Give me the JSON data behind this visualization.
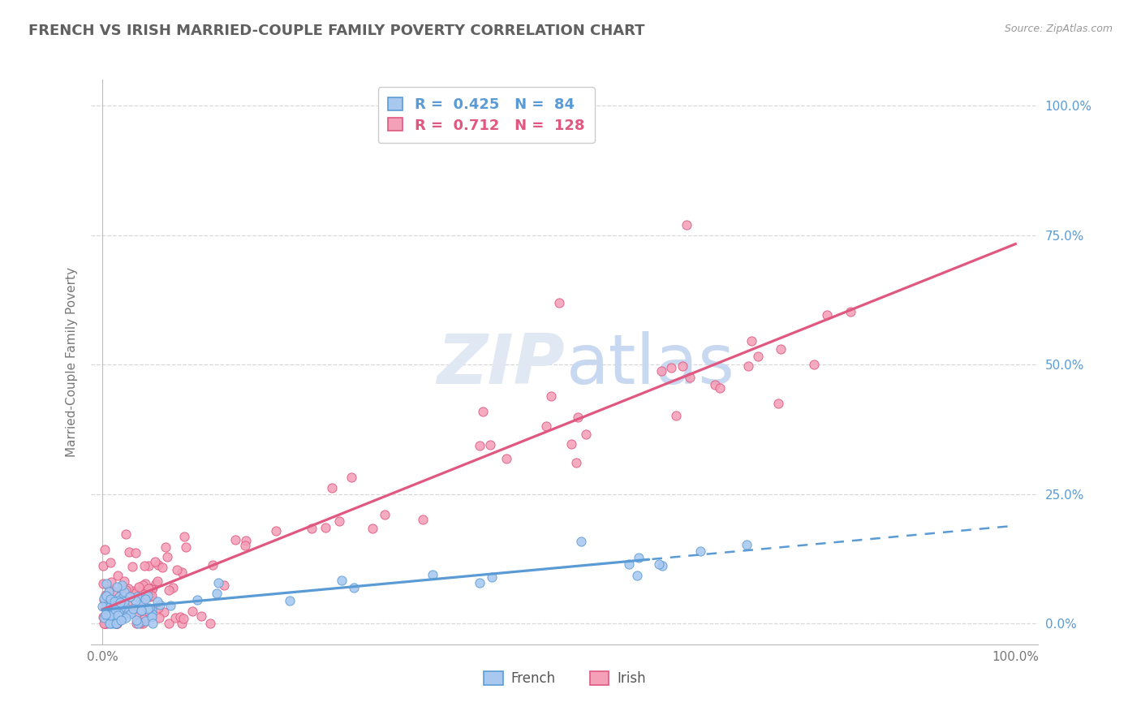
{
  "title": "FRENCH VS IRISH MARRIED-COUPLE FAMILY POVERTY CORRELATION CHART",
  "source": "Source: ZipAtlas.com",
  "ylabel": "Married-Couple Family Poverty",
  "french_R": 0.425,
  "french_N": 84,
  "irish_R": 0.712,
  "irish_N": 128,
  "french_color": "#a8c8f0",
  "irish_color": "#f4a0b8",
  "french_edge_color": "#5b9bd5",
  "irish_edge_color": "#e05880",
  "french_line_color": "#5b9bd5",
  "irish_line_color": "#e05880",
  "right_tick_color": "#5b9bd5",
  "grid_color": "#d8d8d8",
  "title_color": "#606060",
  "source_color": "#999999",
  "ylabel_color": "#777777",
  "xtick_color": "#777777",
  "bg_color": "#ffffff",
  "watermark_zip_color": "#e0e8f4",
  "watermark_atlas_color": "#c8d8f0"
}
